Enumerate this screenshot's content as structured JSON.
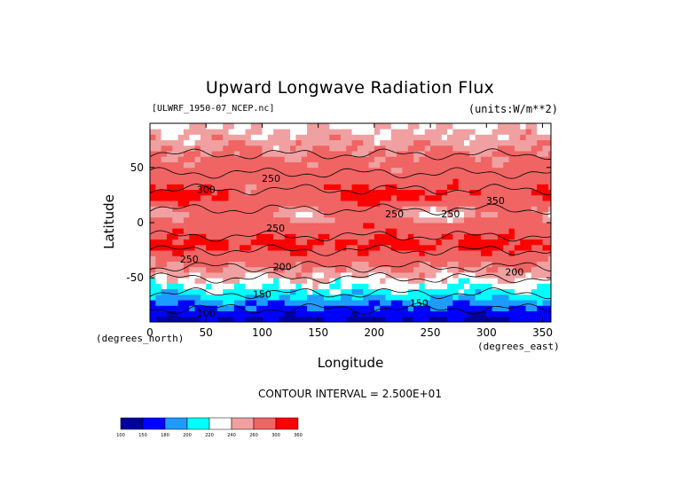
{
  "chart_data": {
    "type": "heatmap",
    "title": "Upward Longwave Radiation Flux",
    "subtitle_left": "[ULWRF_1950-07_NCEP.nc]",
    "subtitle_right": "(units:W/m**2)",
    "xlabel": "Longitude",
    "ylabel": "Latitude",
    "x_unit_label": "(degrees_east)",
    "y_unit_label": "(degrees_north)",
    "xlim": [
      0,
      357.5
    ],
    "ylim": [
      -90,
      90
    ],
    "x_ticks": [
      0,
      50,
      100,
      150,
      200,
      250,
      300,
      350
    ],
    "y_ticks": [
      -50,
      0,
      50
    ],
    "contour_interval_text": "CONTOUR INTERVAL = 2.500E+01",
    "contour_labels": [
      {
        "text": "300",
        "lon": 50,
        "lat": 27
      },
      {
        "text": "250",
        "lon": 108,
        "lat": 37
      },
      {
        "text": "250",
        "lon": 112,
        "lat": -8
      },
      {
        "text": "250",
        "lon": 35,
        "lat": -36
      },
      {
        "text": "200",
        "lon": 118,
        "lat": -43
      },
      {
        "text": "150",
        "lon": 100,
        "lat": -68
      },
      {
        "text": "100",
        "lon": 50,
        "lat": -85
      },
      {
        "text": "250",
        "lon": 218,
        "lat": 5
      },
      {
        "text": "250",
        "lon": 268,
        "lat": 5
      },
      {
        "text": "350",
        "lon": 308,
        "lat": 17
      },
      {
        "text": "200",
        "lon": 325,
        "lat": -48
      },
      {
        "text": "150",
        "lon": 240,
        "lat": -76
      }
    ],
    "colorbar": {
      "labels": [
        "100",
        "150",
        "180",
        "200",
        "220",
        "240",
        "260",
        "300",
        "360"
      ],
      "colors": [
        "#00009c",
        "#0000ff",
        "#1e9bff",
        "#00ffff",
        "#ffffff",
        "#f0a0a0",
        "#f06464",
        "#ff0000"
      ]
    }
  }
}
